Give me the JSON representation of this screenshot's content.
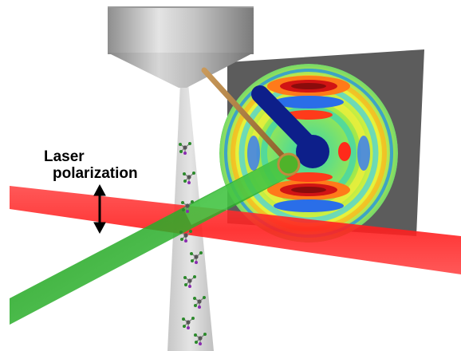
{
  "labels": {
    "line1": "Laser",
    "line2": "polarization"
  },
  "colors": {
    "laser_beam": "#ff2a2a",
    "probe_beam": "#1fa51f",
    "nozzle": "#b9b9b9",
    "molecular_stream": "#c8c8c8",
    "detector_plate": "#5a5a5a",
    "beam_block": "#0d1f8a",
    "beam_block_rod": "#b8843c",
    "arrow": "#000000"
  },
  "icons": {
    "polarization_arrow": "double-headed-vertical-arrow",
    "molecules": "small-ball-and-stick-molecule"
  }
}
